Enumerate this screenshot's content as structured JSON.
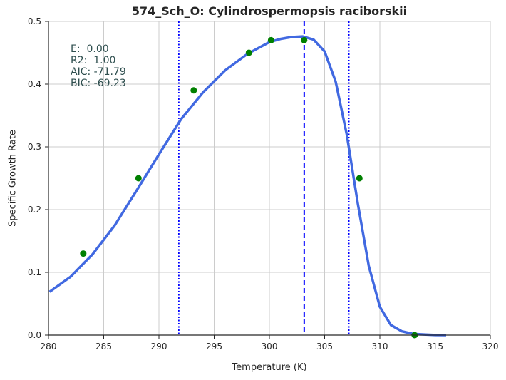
{
  "chart_data": {
    "type": "line",
    "title": "574_Sch_O: Cylindrospermopsis raciborskii",
    "xlabel": "Temperature (K)",
    "ylabel": "Specific Growth Rate",
    "xlim": [
      280,
      320
    ],
    "ylim": [
      0,
      0.5
    ],
    "xticks": [
      "280",
      "285",
      "290",
      "295",
      "300",
      "305",
      "310",
      "315",
      "320"
    ],
    "yticks": [
      "0.0",
      "0.1",
      "0.2",
      "0.3",
      "0.4",
      "0.5"
    ],
    "grid": true,
    "stats": [
      "E:  0.00",
      "R2:  1.00",
      "AIC: -71.79",
      "BIC: -69.23"
    ],
    "observed": {
      "color": "#008000",
      "x": [
        283.15,
        288.15,
        293.15,
        298.15,
        300.15,
        303.15,
        308.15,
        313.15
      ],
      "y": [
        0.13,
        0.25,
        0.39,
        0.45,
        0.47,
        0.47,
        0.25,
        0.0
      ]
    },
    "fit": {
      "color": "#4169e1",
      "x": [
        280.1,
        282,
        284,
        286,
        288,
        290,
        292,
        294,
        296,
        298,
        300,
        301,
        302,
        303,
        304,
        305,
        306,
        307,
        308,
        309,
        310,
        311,
        312,
        313,
        314,
        315,
        316
      ],
      "y": [
        0.069,
        0.093,
        0.129,
        0.175,
        0.231,
        0.288,
        0.344,
        0.387,
        0.422,
        0.448,
        0.467,
        0.472,
        0.475,
        0.476,
        0.471,
        0.452,
        0.404,
        0.32,
        0.21,
        0.11,
        0.045,
        0.016,
        0.006,
        0.002,
        0.001,
        0.0002,
        0.0
      ]
    },
    "vlines": [
      {
        "x": 303.15,
        "style": "dashed",
        "color": "#0000ff"
      },
      {
        "x": 291.8,
        "style": "dotted",
        "color": "#0000ff"
      },
      {
        "x": 307.2,
        "style": "dotted",
        "color": "#0000ff"
      }
    ]
  }
}
